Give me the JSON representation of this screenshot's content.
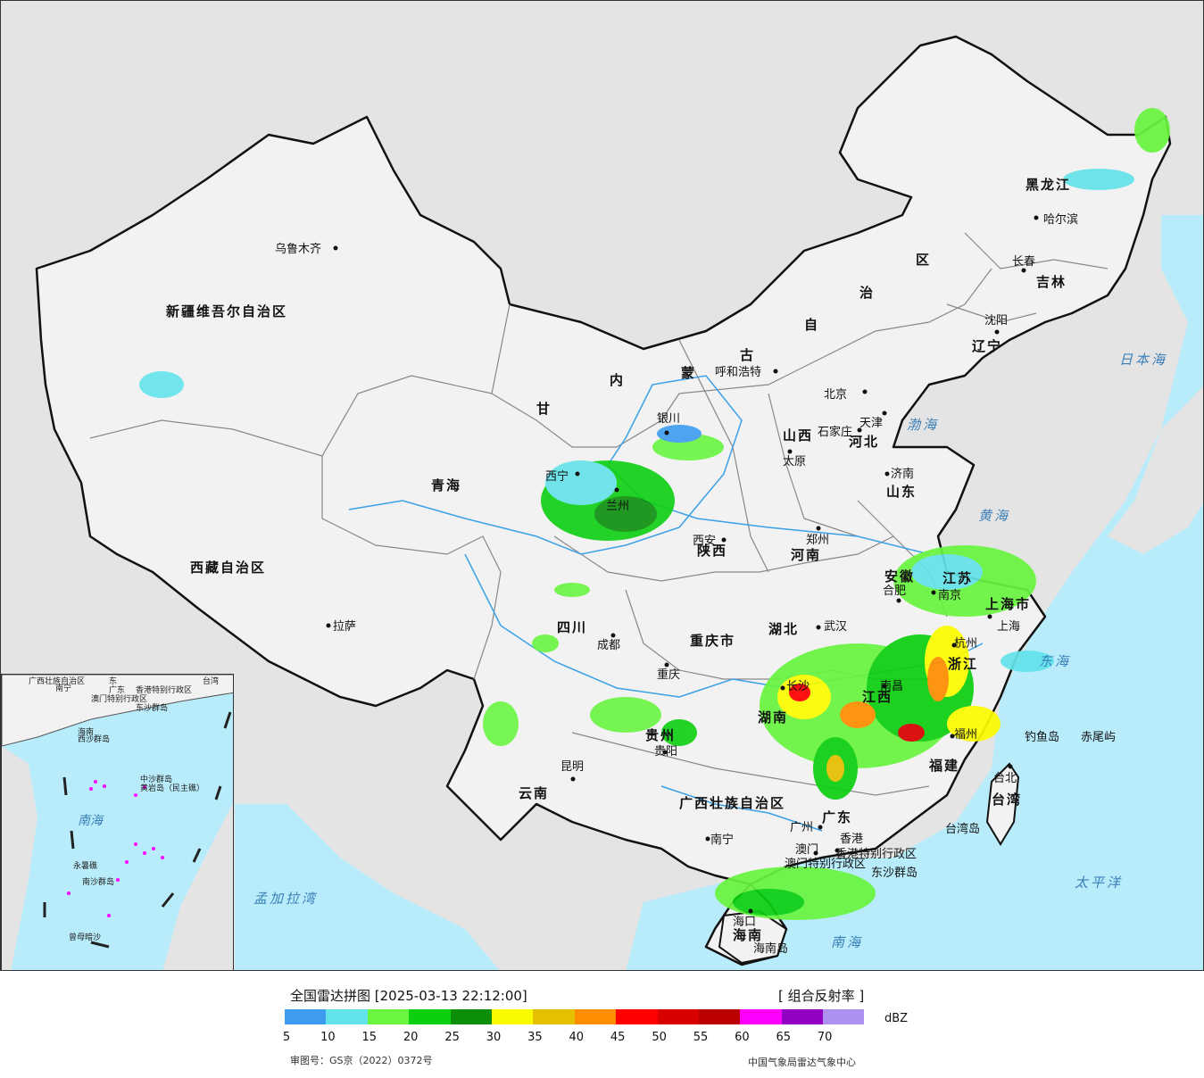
{
  "legend": {
    "title": "全国雷达拼图 [2025-03-13 22:12:00]",
    "product": "[ 组合反射率 ]",
    "unit": "dBZ",
    "ticks": [
      "5",
      "10",
      "15",
      "20",
      "25",
      "30",
      "35",
      "40",
      "45",
      "50",
      "55",
      "60",
      "65",
      "70"
    ],
    "colors": [
      "#3d9cf0",
      "#63e3ea",
      "#69f540",
      "#0ccf10",
      "#0b8f0b",
      "#fbfb00",
      "#e5c000",
      "#ff8d00",
      "#fe0000",
      "#d90000",
      "#bb0000",
      "#fd00fd",
      "#9200c3",
      "#ad90f0"
    ],
    "approval": "审图号：GS京（2022）0372号",
    "agency": "中国气象局雷达气象中心"
  },
  "map": {
    "colors": {
      "sea": "#b8ecfb",
      "land_outside": "#e4e4e4",
      "china": "#f2f2f2",
      "border": "#111111",
      "river": "#3aa0e8"
    },
    "provinces": [
      {
        "name": "新疆维吾尔自治区"
      },
      {
        "name": "西藏自治区"
      },
      {
        "name": "青海"
      },
      {
        "name": "甘"
      },
      {
        "name": "内"
      },
      {
        "name": "蒙"
      },
      {
        "name": "古"
      },
      {
        "name": "自"
      },
      {
        "name": "治"
      },
      {
        "name": "区"
      },
      {
        "name": "黑龙江"
      },
      {
        "name": "吉林"
      },
      {
        "name": "辽宁"
      },
      {
        "name": "河北"
      },
      {
        "name": "山西"
      },
      {
        "name": "山东"
      },
      {
        "name": "河南"
      },
      {
        "name": "陕西"
      },
      {
        "name": "四川"
      },
      {
        "name": "重庆市"
      },
      {
        "name": "湖北"
      },
      {
        "name": "湖南"
      },
      {
        "name": "安徽"
      },
      {
        "name": "江苏"
      },
      {
        "name": "上海市"
      },
      {
        "name": "浙江"
      },
      {
        "name": "江西"
      },
      {
        "name": "福建"
      },
      {
        "name": "贵州"
      },
      {
        "name": "云南"
      },
      {
        "name": "广西壮族自治区"
      },
      {
        "name": "广东"
      },
      {
        "name": "海南"
      },
      {
        "name": "台湾"
      },
      {
        "name": "香港特别行政区"
      },
      {
        "name": "澳门特别行政区"
      }
    ],
    "cities": [
      "乌鲁木齐",
      "拉萨",
      "西宁",
      "兰州",
      "银川",
      "呼和浩特",
      "北京",
      "天津",
      "石家庄",
      "太原",
      "济南",
      "郑州",
      "西安",
      "成都",
      "重庆",
      "武汉",
      "长沙",
      "南昌",
      "合肥",
      "南京",
      "上海",
      "杭州",
      "福州",
      "贵阳",
      "昆明",
      "南宁",
      "广州",
      "香港",
      "澳门",
      "海口",
      "哈尔滨",
      "长春",
      "沈阳",
      "台北"
    ],
    "seas": [
      "日本海",
      "渤海",
      "黄海",
      "东海",
      "太平洋",
      "南海",
      "孟加拉湾"
    ],
    "islands": [
      "钓鱼岛",
      "赤尾屿",
      "台湾岛",
      "东沙群岛",
      "海南岛"
    ],
    "inset_labels": [
      "广西壮族自治区",
      "东",
      "广东",
      "南宁",
      "香港特别行政区",
      "澳门特别行政区",
      "东沙群岛",
      "台湾",
      "海南",
      "西沙群岛",
      "中沙群岛",
      "黄岩岛（民主礁）",
      "南海",
      "永暑礁",
      "南沙群岛",
      "曾母暗沙"
    ]
  }
}
